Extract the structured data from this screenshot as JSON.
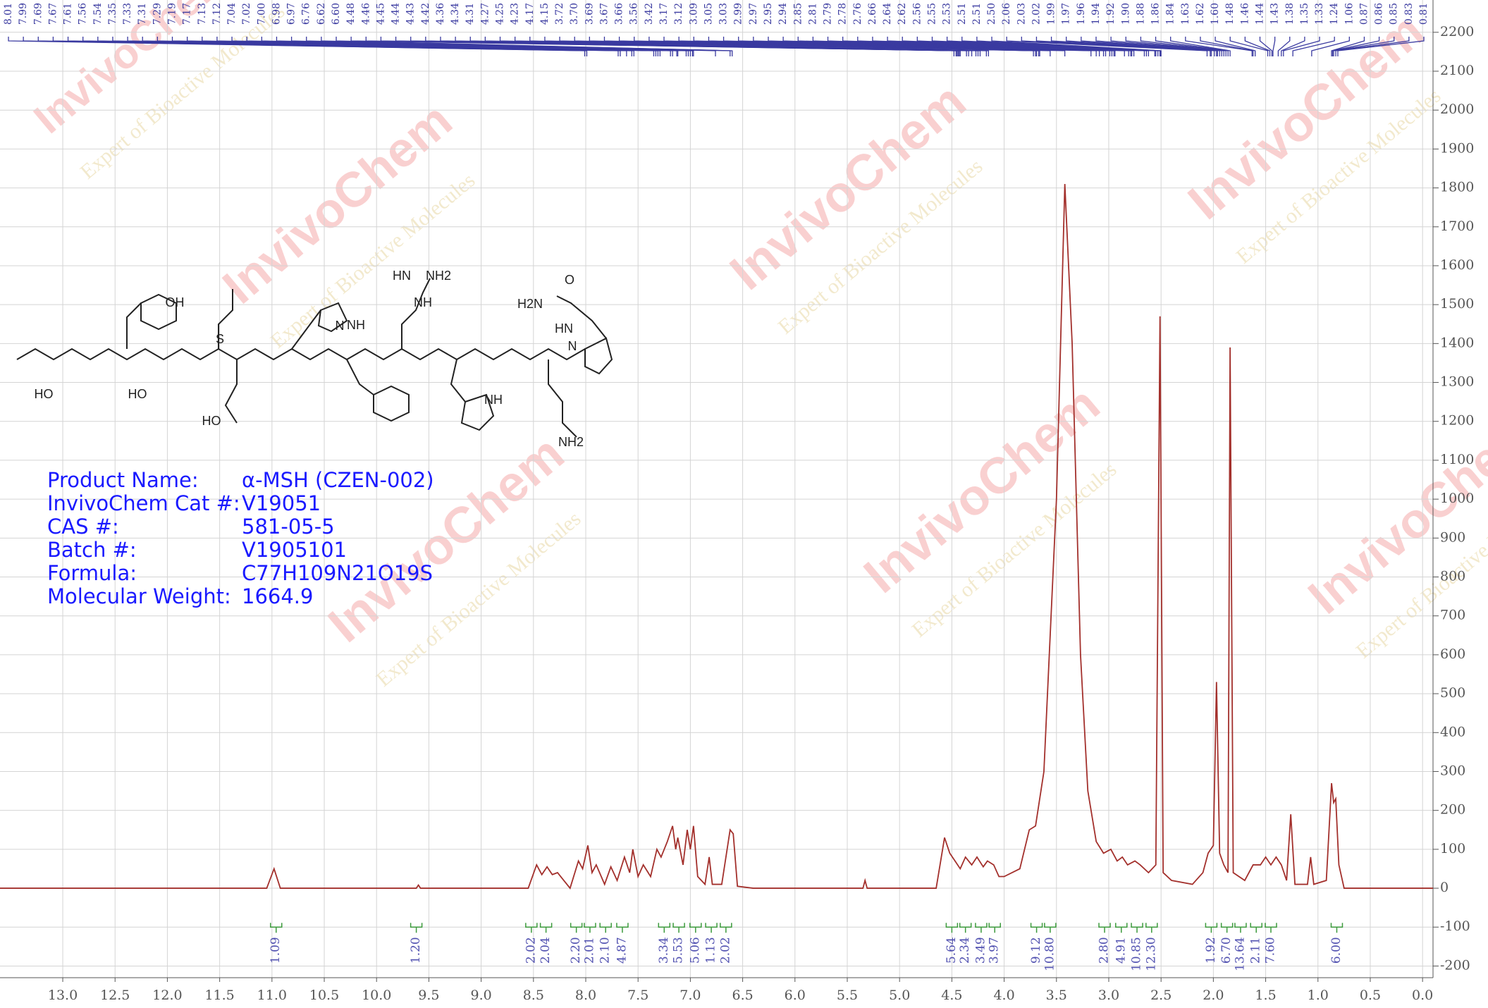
{
  "chart_data": {
    "type": "line",
    "series": [
      {
        "name": "1H NMR",
        "color": "#a3302c",
        "x": [
          13.6,
          11.05,
          10.98,
          10.92,
          9.62,
          9.6,
          9.58,
          8.55,
          8.47,
          8.42,
          8.37,
          8.32,
          8.27,
          8.15,
          8.07,
          8.03,
          7.98,
          7.94,
          7.9,
          7.82,
          7.76,
          7.7,
          7.63,
          7.58,
          7.55,
          7.5,
          7.45,
          7.38,
          7.32,
          7.28,
          7.22,
          7.17,
          7.14,
          7.12,
          7.07,
          7.03,
          7.0,
          6.97,
          6.93,
          6.86,
          6.82,
          6.79,
          6.7,
          6.62,
          6.59,
          6.55,
          6.4,
          5.35,
          5.33,
          5.31,
          4.65,
          4.57,
          4.52,
          4.47,
          4.42,
          4.37,
          4.31,
          4.26,
          4.2,
          4.16,
          4.1,
          4.05,
          4.0,
          3.85,
          3.76,
          3.7,
          3.62,
          3.5,
          3.42,
          3.35,
          3.27,
          3.2,
          3.12,
          3.05,
          2.98,
          2.92,
          2.87,
          2.82,
          2.75,
          2.7,
          2.62,
          2.55,
          2.51,
          2.48,
          2.4,
          2.2,
          2.1,
          2.05,
          2.0,
          1.97,
          1.94,
          1.9,
          1.86,
          1.84,
          1.81,
          1.7,
          1.62,
          1.55,
          1.5,
          1.45,
          1.4,
          1.35,
          1.3,
          1.26,
          1.22,
          1.1,
          1.07,
          1.04,
          0.92,
          0.87,
          0.85,
          0.83,
          0.8,
          0.75,
          -0.1
        ],
        "values": [
          0,
          0,
          50,
          0,
          0,
          8,
          0,
          0,
          60,
          35,
          55,
          35,
          40,
          0,
          70,
          50,
          110,
          40,
          60,
          10,
          55,
          20,
          80,
          40,
          100,
          30,
          60,
          30,
          100,
          80,
          120,
          160,
          100,
          130,
          60,
          150,
          100,
          160,
          30,
          10,
          80,
          10,
          10,
          150,
          140,
          5,
          0,
          0,
          20,
          0,
          0,
          130,
          90,
          70,
          50,
          80,
          60,
          80,
          55,
          70,
          60,
          30,
          30,
          50,
          150,
          160,
          300,
          1000,
          1810,
          1400,
          600,
          250,
          120,
          90,
          100,
          70,
          80,
          60,
          70,
          60,
          40,
          60,
          1470,
          40,
          20,
          10,
          40,
          90,
          110,
          530,
          90,
          60,
          40,
          1390,
          40,
          20,
          60,
          60,
          80,
          60,
          80,
          60,
          20,
          190,
          10,
          10,
          80,
          10,
          20,
          270,
          220,
          230,
          60,
          0,
          0
        ]
      }
    ],
    "xlim": [
      13.6,
      -0.1
    ],
    "ylim": [
      -230,
      2283
    ],
    "xticks": [
      {
        "value": 13,
        "label": "13.0"
      },
      {
        "value": 12.5,
        "label": "12.5"
      },
      {
        "value": 12,
        "label": "12.0"
      },
      {
        "value": 11.5,
        "label": "11.5"
      },
      {
        "value": 11,
        "label": "11.0"
      },
      {
        "value": 10.5,
        "label": "10.5"
      },
      {
        "value": 10,
        "label": "10.0"
      },
      {
        "value": 9.5,
        "label": "9.5"
      },
      {
        "value": 9,
        "label": "9.0"
      },
      {
        "value": 8.5,
        "label": "8.5"
      },
      {
        "value": 8,
        "label": "8.0"
      },
      {
        "value": 7.5,
        "label": "7.5"
      },
      {
        "value": 7,
        "label": "7.0"
      },
      {
        "value": 6.5,
        "label": "6.5"
      },
      {
        "value": 6,
        "label": "6.0"
      },
      {
        "value": 5.5,
        "label": "5.5"
      },
      {
        "value": 5,
        "label": "5.0"
      },
      {
        "value": 4.5,
        "label": "4.5"
      },
      {
        "value": 4,
        "label": "4.0"
      },
      {
        "value": 3.5,
        "label": "3.5"
      },
      {
        "value": 3,
        "label": "3.0"
      },
      {
        "value": 2.5,
        "label": "2.5"
      },
      {
        "value": 2,
        "label": "2.0"
      },
      {
        "value": 1.5,
        "label": "1.5"
      },
      {
        "value": 1,
        "label": "1.0"
      },
      {
        "value": 0.5,
        "label": "0.5"
      },
      {
        "value": 0,
        "label": "0.0"
      }
    ],
    "yticks": [
      -200,
      -100,
      0,
      100,
      200,
      300,
      400,
      500,
      600,
      700,
      800,
      900,
      1000,
      1100,
      1200,
      1300,
      1400,
      1500,
      1600,
      1700,
      1800,
      1900,
      2000,
      2100,
      2200
    ],
    "grid": true,
    "peaks": {
      "color": "#3a3aa0",
      "values": [
        8.01,
        7.99,
        7.69,
        7.67,
        7.61,
        7.56,
        7.54,
        7.35,
        7.33,
        7.31,
        7.29,
        7.19,
        7.17,
        7.13,
        7.12,
        7.04,
        7.02,
        7,
        6.98,
        6.97,
        6.76,
        6.62,
        6.6,
        4.48,
        4.46,
        4.45,
        4.44,
        4.43,
        4.42,
        4.36,
        4.34,
        4.31,
        4.27,
        4.25,
        4.23,
        4.17,
        4.15,
        3.72,
        3.7,
        3.69,
        3.67,
        3.66,
        3.56,
        3.42,
        3.17,
        3.12,
        3.09,
        3.05,
        3.03,
        2.99,
        2.97,
        2.95,
        2.94,
        2.85,
        2.81,
        2.79,
        2.78,
        2.76,
        2.66,
        2.64,
        2.62,
        2.56,
        2.55,
        2.53,
        2.51,
        2.51,
        2.5,
        2.06,
        2.03,
        2.02,
        1.99,
        1.97,
        1.96,
        1.94,
        1.92,
        1.9,
        1.88,
        1.86,
        1.84,
        1.63,
        1.62,
        1.6,
        1.48,
        1.46,
        1.44,
        1.43,
        1.38,
        1.35,
        1.33,
        1.24,
        1.06,
        0.87,
        0.86,
        0.85,
        0.83,
        0.81
      ],
      "value_labels": [
        "8.01",
        "7.99",
        "7.69",
        "7.67",
        "7.61",
        "7.56",
        "7.54",
        "7.35",
        "7.33",
        "7.31",
        "7.29",
        "7.19",
        "7.17",
        "7.13",
        "7.12",
        "7.04",
        "7.02",
        "7.00",
        "6.98",
        "6.97",
        "6.76",
        "6.62",
        "6.60",
        "4.48",
        "4.46",
        "4.45",
        "4.44",
        "4.43",
        "4.42",
        "4.36",
        "4.34",
        "4.31",
        "4.27",
        "4.25",
        "4.23",
        "4.17",
        "4.15",
        "3.72",
        "3.70",
        "3.69",
        "3.67",
        "3.66",
        "3.56",
        "3.42",
        "3.17",
        "3.12",
        "3.09",
        "3.05",
        "3.03",
        "2.99",
        "2.97",
        "2.95",
        "2.94",
        "2.85",
        "2.81",
        "2.79",
        "2.78",
        "2.76",
        "2.66",
        "2.64",
        "2.62",
        "2.56",
        "2.55",
        "2.53",
        "2.51",
        "2.51",
        "2.50",
        "2.06",
        "2.03",
        "2.02",
        "1.99",
        "1.97",
        "1.96",
        "1.94",
        "1.92",
        "1.90",
        "1.88",
        "1.86",
        "1.84",
        "1.63",
        "1.62",
        "1.60",
        "1.48",
        "1.46",
        "1.44",
        "1.43",
        "1.38",
        "1.35",
        "1.33",
        "1.24",
        "1.06",
        "0.87",
        "0.86",
        "0.85",
        "0.83",
        "0.81"
      ]
    },
    "integrals": {
      "color": "#3c9a3c",
      "x": [
        10.96,
        9.62,
        8.52,
        8.38,
        8.09,
        7.96,
        7.81,
        7.65,
        7.25,
        7.11,
        6.95,
        6.8,
        6.66,
        4.5,
        4.37,
        4.22,
        4.09,
        3.69,
        3.56,
        3.04,
        2.88,
        2.73,
        2.59,
        2.02,
        1.87,
        1.74,
        1.59,
        1.45,
        0.82
      ],
      "values": [
        1.09,
        1.2,
        2.02,
        2.04,
        2.2,
        2.01,
        2.1,
        4.87,
        3.34,
        5.53,
        5.06,
        1.13,
        2.02,
        5.64,
        2.34,
        3.49,
        3.97,
        9.12,
        10.8,
        2.8,
        4.91,
        10.85,
        12.3,
        1.92,
        6.7,
        13.64,
        2.11,
        7.6,
        6
      ],
      "value_labels": [
        "1.09",
        "1.20",
        "2.02",
        "2.04",
        "2.20",
        "2.01",
        "2.10",
        "4.87",
        "3.34",
        "5.53",
        "5.06",
        "1.13",
        "2.02",
        "5.64",
        "2.34",
        "3.49",
        "3.97",
        "9.12",
        "10.80",
        "2.80",
        "4.91",
        "10.85",
        "12.30",
        "1.92",
        "6.70",
        "13.64",
        "2.11",
        "7.60",
        "6.00"
      ]
    }
  },
  "product_info": [
    {
      "label": "Product Name:",
      "value": "α-MSH (CZEN-002)"
    },
    {
      "label": "InvivoChem Cat #:",
      "value": "V19051"
    },
    {
      "label": "CAS #:",
      "value": "581-05-5"
    },
    {
      "label": "Batch #:",
      "value": "V1905101"
    },
    {
      "label": "Formula:",
      "value": "C77H109N21O19S"
    },
    {
      "label": "Molecular Weight:",
      "value": "1664.9"
    }
  ],
  "structure_labels": [
    "OH",
    "S",
    "HN",
    "NH2",
    "NH",
    "N",
    "NH",
    "H2N",
    "HN",
    "N",
    "O",
    "HO",
    "HO",
    "HO",
    "NH",
    "NH2"
  ],
  "watermark": {
    "brand": "InvivoChem",
    "tagline": "Expert of Bioactive Molecules"
  }
}
